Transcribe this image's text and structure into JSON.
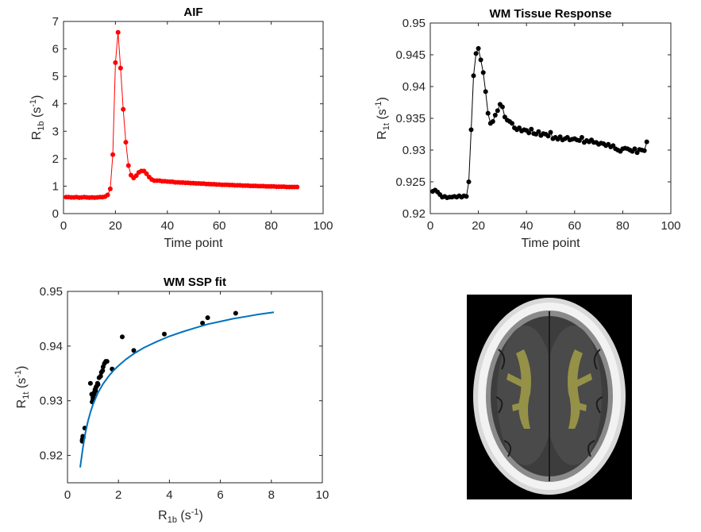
{
  "colors": {
    "aif": "#ff0000",
    "wm": "#000000",
    "fit": "#0072bd",
    "axis": "#262626"
  },
  "chart_data": [
    {
      "id": "aif",
      "type": "line",
      "title": "AIF",
      "xlabel": "Time point",
      "ylabel": {
        "main": "R",
        "sub": "1b",
        "unit_open": " (s",
        "unit_sup": "-1",
        "unit_close": ")"
      },
      "xlim": [
        0,
        100
      ],
      "ylim": [
        0,
        7
      ],
      "xticks": [
        0,
        20,
        40,
        60,
        80,
        100
      ],
      "yticks": [
        0,
        1,
        2,
        3,
        4,
        5,
        6,
        7
      ],
      "tick_labels_x": [
        "0",
        "20",
        "40",
        "60",
        "80",
        "100"
      ],
      "tick_labels_y": [
        "0",
        "1",
        "2",
        "3",
        "4",
        "5",
        "6",
        "7"
      ],
      "series": [
        {
          "name": "AIF",
          "marker": "dot",
          "x": [
            1,
            2,
            3,
            4,
            5,
            6,
            7,
            8,
            9,
            10,
            11,
            12,
            13,
            14,
            15,
            16,
            17,
            18,
            19,
            20,
            21,
            22,
            23,
            24,
            25,
            26,
            27,
            28,
            29,
            30,
            31,
            32,
            33,
            34,
            35,
            36,
            37,
            38,
            39,
            40,
            41,
            42,
            43,
            44,
            45,
            46,
            47,
            48,
            49,
            50,
            51,
            52,
            53,
            54,
            55,
            56,
            57,
            58,
            59,
            60,
            61,
            62,
            63,
            64,
            65,
            66,
            67,
            68,
            69,
            70,
            71,
            72,
            73,
            74,
            75,
            76,
            77,
            78,
            79,
            80,
            81,
            82,
            83,
            84,
            85,
            86,
            87,
            88,
            89,
            90
          ],
          "y": [
            0.6,
            0.6,
            0.59,
            0.59,
            0.6,
            0.58,
            0.59,
            0.6,
            0.59,
            0.58,
            0.59,
            0.58,
            0.59,
            0.6,
            0.6,
            0.62,
            0.68,
            0.9,
            2.15,
            5.5,
            6.6,
            5.3,
            3.8,
            2.6,
            1.75,
            1.4,
            1.3,
            1.38,
            1.5,
            1.55,
            1.55,
            1.45,
            1.33,
            1.24,
            1.2,
            1.2,
            1.2,
            1.18,
            1.18,
            1.17,
            1.16,
            1.16,
            1.14,
            1.14,
            1.13,
            1.13,
            1.12,
            1.12,
            1.11,
            1.11,
            1.1,
            1.1,
            1.09,
            1.09,
            1.08,
            1.08,
            1.07,
            1.07,
            1.06,
            1.06,
            1.05,
            1.05,
            1.05,
            1.04,
            1.04,
            1.03,
            1.03,
            1.03,
            1.02,
            1.02,
            1.02,
            1.01,
            1.01,
            1.01,
            1.0,
            1.0,
            1.0,
            0.99,
            0.99,
            0.99,
            0.99,
            0.98,
            0.98,
            0.98,
            0.98,
            0.97,
            0.97,
            0.97,
            0.97,
            0.97
          ]
        }
      ]
    },
    {
      "id": "wm",
      "type": "line",
      "title": "WM Tissue Response",
      "xlabel": "Time point",
      "ylabel": {
        "main": "R",
        "sub": "1t",
        "unit_open": " (s",
        "unit_sup": "-1",
        "unit_close": ")"
      },
      "xlim": [
        0,
        100
      ],
      "ylim": [
        0.92,
        0.95
      ],
      "xticks": [
        0,
        20,
        40,
        60,
        80,
        100
      ],
      "yticks": [
        0.92,
        0.925,
        0.93,
        0.935,
        0.94,
        0.945,
        0.95
      ],
      "tick_labels_x": [
        "0",
        "20",
        "40",
        "60",
        "80",
        "100"
      ],
      "tick_labels_y": [
        "0.92",
        "0.925",
        "0.93",
        "0.935",
        "0.94",
        "0.945",
        "0.95"
      ],
      "series": [
        {
          "name": "WM",
          "marker": "dot",
          "x": [
            1,
            2,
            3,
            4,
            5,
            6,
            7,
            8,
            9,
            10,
            11,
            12,
            13,
            14,
            15,
            16,
            17,
            18,
            19,
            20,
            21,
            22,
            23,
            24,
            25,
            26,
            27,
            28,
            29,
            30,
            31,
            32,
            33,
            34,
            35,
            36,
            37,
            38,
            39,
            40,
            41,
            42,
            43,
            44,
            45,
            46,
            47,
            48,
            49,
            50,
            51,
            52,
            53,
            54,
            55,
            56,
            57,
            58,
            59,
            60,
            61,
            62,
            63,
            64,
            65,
            66,
            67,
            68,
            69,
            70,
            71,
            72,
            73,
            74,
            75,
            76,
            77,
            78,
            79,
            80,
            81,
            82,
            83,
            84,
            85,
            86,
            87,
            88,
            89,
            90
          ],
          "y": [
            0.9235,
            0.9237,
            0.9234,
            0.923,
            0.9226,
            0.9227,
            0.9225,
            0.9226,
            0.9226,
            0.9227,
            0.9226,
            0.9228,
            0.9226,
            0.9228,
            0.9227,
            0.925,
            0.9332,
            0.9417,
            0.9452,
            0.946,
            0.9442,
            0.9422,
            0.9392,
            0.9358,
            0.9342,
            0.9345,
            0.9355,
            0.9362,
            0.9372,
            0.9368,
            0.9352,
            0.9347,
            0.9345,
            0.9342,
            0.9335,
            0.9332,
            0.9335,
            0.933,
            0.9332,
            0.9331,
            0.9327,
            0.9333,
            0.9326,
            0.9325,
            0.9329,
            0.9323,
            0.9326,
            0.9325,
            0.9322,
            0.9328,
            0.9318,
            0.932,
            0.9317,
            0.9321,
            0.9316,
            0.9318,
            0.932,
            0.9316,
            0.9317,
            0.9318,
            0.9316,
            0.9315,
            0.932,
            0.9312,
            0.9315,
            0.9313,
            0.9316,
            0.9312,
            0.9312,
            0.9309,
            0.9311,
            0.931,
            0.9307,
            0.9309,
            0.9305,
            0.9307,
            0.9302,
            0.93,
            0.9298,
            0.9302,
            0.9303,
            0.9302,
            0.93,
            0.9298,
            0.9302,
            0.9296,
            0.9301,
            0.93,
            0.9299,
            0.9313
          ]
        }
      ]
    },
    {
      "id": "ssp",
      "type": "scatter",
      "title": "WM SSP fit",
      "xlabel": {
        "main": "R",
        "sub": "1b",
        "unit_open": " (s",
        "unit_sup": "-1",
        "unit_close": ")"
      },
      "ylabel": {
        "main": "R",
        "sub": "1t",
        "unit_open": " (s",
        "unit_sup": "-1",
        "unit_close": ")"
      },
      "xlim": [
        0,
        10
      ],
      "ylim": [
        0.915,
        0.95
      ],
      "xticks": [
        0,
        2,
        4,
        6,
        8,
        10
      ],
      "yticks": [
        0.92,
        0.93,
        0.94,
        0.95
      ],
      "tick_labels_x": [
        "0",
        "2",
        "4",
        "6",
        "8",
        "10"
      ],
      "tick_labels_y": [
        "0.92",
        "0.93",
        "0.94",
        "0.95"
      ],
      "series": [
        {
          "name": "data",
          "marker": "dot",
          "x": [
            0.58,
            0.58,
            0.59,
            0.6,
            0.62,
            0.68,
            0.9,
            0.95,
            0.97,
            1.0,
            1.02,
            1.05,
            1.08,
            1.1,
            1.12,
            1.15,
            1.18,
            1.2,
            1.24,
            1.3,
            1.33,
            1.38,
            1.4,
            1.45,
            1.5,
            1.55,
            1.75,
            2.15,
            2.6,
            3.8,
            5.3,
            5.5,
            6.6,
            1.0,
            1.05,
            1.1
          ],
          "y": [
            0.9226,
            0.9228,
            0.923,
            0.9235,
            0.9233,
            0.925,
            0.9332,
            0.9312,
            0.9298,
            0.9302,
            0.931,
            0.9315,
            0.932,
            0.9318,
            0.9325,
            0.9327,
            0.9332,
            0.933,
            0.9342,
            0.9345,
            0.9352,
            0.9355,
            0.9362,
            0.9368,
            0.9372,
            0.9372,
            0.9358,
            0.9417,
            0.9392,
            0.9422,
            0.9442,
            0.9452,
            0.946,
            0.9306,
            0.9313,
            0.9322
          ]
        },
        {
          "name": "fit",
          "marker": "line",
          "x": [
            0.5,
            0.6,
            0.7,
            0.8,
            0.9,
            1.0,
            1.2,
            1.4,
            1.6,
            1.8,
            2.0,
            2.3,
            2.6,
            3.0,
            3.5,
            4.0,
            4.5,
            5.0,
            5.5,
            6.0,
            6.5,
            7.0,
            7.5,
            8.1
          ],
          "y": [
            0.9178,
            0.9213,
            0.9241,
            0.9262,
            0.9279,
            0.9293,
            0.9315,
            0.9331,
            0.9344,
            0.9355,
            0.9364,
            0.9376,
            0.9386,
            0.9397,
            0.9408,
            0.9418,
            0.9426,
            0.9433,
            0.944,
            0.9445,
            0.945,
            0.9454,
            0.9458,
            0.9462
          ]
        }
      ]
    }
  ]
}
